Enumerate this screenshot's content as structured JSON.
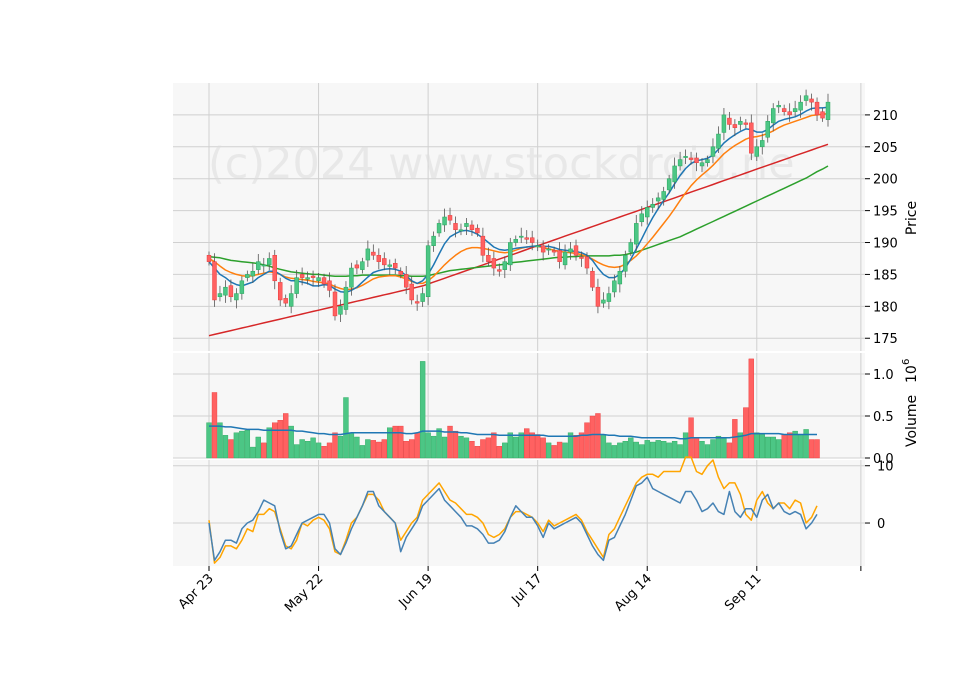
{
  "watermark": "(c)2024 www.stockdroid.ne",
  "colors": {
    "up": "#26a65b",
    "up_fill": "#4cc685",
    "down": "#e83a3a",
    "down_fill": "#ff6161",
    "ma_short": "#1f77b4",
    "ma_mid": "#ff7f0e",
    "ma_long": "#2ca02c",
    "ma_200": "#d62728",
    "osc_fast": "#4682b4",
    "osc_slow": "#ffa500",
    "panel_bg": "#f7f7f7",
    "grid": "#d0d0d0"
  },
  "chart_data": [
    {
      "panel": "price",
      "type": "candlestick",
      "ylabel": "Price",
      "ylim": [
        173,
        215
      ],
      "yticks": [
        175,
        180,
        185,
        190,
        195,
        200,
        205,
        210
      ],
      "x_date_labels": [
        "Apr 23",
        "May 22",
        "Jun 19",
        "Jul 17",
        "Aug 14",
        "Sep 11"
      ],
      "x_date_tick_indices": [
        0,
        20,
        40,
        60,
        80,
        100
      ],
      "close": [
        187,
        181,
        182,
        183,
        181.5,
        182,
        184,
        185,
        185.5,
        187,
        186.5,
        187.5,
        184,
        181,
        180.5,
        182,
        184.5,
        184.5,
        184.5,
        184.5,
        184.5,
        183.5,
        182.5,
        178.5,
        180,
        183,
        186,
        186,
        187,
        189,
        188,
        187,
        186.5,
        186.5,
        186,
        185,
        183,
        181,
        180.5,
        182,
        189.5,
        191,
        193,
        194,
        193.5,
        192,
        192,
        193,
        192,
        191.5,
        188,
        187,
        186,
        185.5,
        187,
        190,
        190.5,
        191,
        190.5,
        190,
        189.5,
        188.5,
        189,
        188.5,
        187,
        188.5,
        189,
        188,
        187.5,
        186,
        183,
        180,
        181,
        182,
        184,
        185.5,
        188,
        190,
        193,
        194.5,
        195.5,
        196,
        197,
        198,
        200,
        202,
        203,
        203.5,
        203,
        202.5,
        202.5,
        203,
        205,
        207,
        210,
        208.5,
        208,
        209,
        208.5,
        204,
        205,
        206,
        209,
        211,
        211.5,
        210.5,
        210,
        211,
        212,
        213,
        212,
        210,
        209.5,
        212
      ],
      "ma_short": [
        187,
        186,
        185,
        184.5,
        183.8,
        183.4,
        183.2,
        183.5,
        183.8,
        184.5,
        185,
        185.5,
        185.5,
        185,
        184.4,
        184,
        184,
        183.8,
        183.6,
        183.2,
        183.2,
        183.4,
        183.3,
        182.7,
        182.3,
        182.2,
        182.5,
        183,
        183.8,
        184.6,
        185.3,
        185.6,
        185.8,
        185.9,
        185.8,
        185.5,
        184.8,
        184,
        183.6,
        184,
        185,
        186.5,
        188.2,
        189.8,
        190.9,
        191.4,
        191.8,
        191.9,
        191.7,
        191.3,
        190.7,
        190,
        189.3,
        188.9,
        188.8,
        188.9,
        189.1,
        189.2,
        189.3,
        189.4,
        189.5,
        189.4,
        189.4,
        189.2,
        188.9,
        188.8,
        188.7,
        188.6,
        188.4,
        188,
        187.2,
        186,
        185,
        184.5,
        184.5,
        185,
        186,
        187.4,
        189,
        190.6,
        192.3,
        193.9,
        195.3,
        196.6,
        197.8,
        199.2,
        200.5,
        201.6,
        202.4,
        202.8,
        203,
        203.2,
        203.7,
        204.6,
        205.6,
        206.3,
        206.9,
        207.4,
        207.8,
        207.7,
        207.3,
        207.3,
        207.7,
        208.4,
        209,
        209.3,
        209.5,
        209.7,
        210.1,
        210.6,
        211,
        211.1,
        211.1,
        211.2
      ],
      "ma_mid": [
        187.5,
        187,
        186.3,
        185.7,
        185.3,
        185,
        184.8,
        184.7,
        184.8,
        185,
        185.2,
        185.4,
        185.3,
        185,
        184.6,
        184.4,
        184.3,
        184.2,
        184.1,
        183.9,
        183.8,
        183.7,
        183.5,
        183.1,
        182.8,
        182.6,
        182.7,
        182.9,
        183.3,
        183.8,
        184.3,
        184.6,
        184.7,
        184.8,
        184.8,
        184.6,
        184.3,
        183.9,
        183.6,
        183.6,
        184,
        184.7,
        185.6,
        186.5,
        187.3,
        188,
        188.6,
        189,
        189.2,
        189.2,
        189.1,
        188.9,
        188.7,
        188.5,
        188.4,
        188.5,
        188.8,
        189.1,
        189.3,
        189.4,
        189.4,
        189.2,
        189,
        188.8,
        188.6,
        188.5,
        188.4,
        188.3,
        188.1,
        187.8,
        187.4,
        186.9,
        186.5,
        186.2,
        186.1,
        186.2,
        186.6,
        187.2,
        187.9,
        188.8,
        189.8,
        190.8,
        191.9,
        193,
        194.1,
        195.3,
        196.6,
        197.8,
        198.9,
        199.8,
        200.6,
        201.3,
        202.1,
        203,
        203.9,
        204.6,
        205.2,
        205.7,
        206.2,
        206.5,
        206.6,
        206.8,
        207.1,
        207.5,
        208,
        208.4,
        208.7,
        209,
        209.3,
        209.6,
        209.9,
        210,
        210.1,
        210.2
      ],
      "ma_long": [
        187.8,
        187.7,
        187.6,
        187.4,
        187.2,
        187.1,
        187,
        186.9,
        186.8,
        186.7,
        186.5,
        186.3,
        186,
        185.8,
        185.6,
        185.4,
        185.3,
        185.2,
        185.1,
        185,
        185,
        184.9,
        184.8,
        184.7,
        184.7,
        184.7,
        184.8,
        184.8,
        184.9,
        184.9,
        184.9,
        184.9,
        184.9,
        184.9,
        184.9,
        184.8,
        184.8,
        184.7,
        184.7,
        184.7,
        184.8,
        185,
        185.2,
        185.4,
        185.6,
        185.7,
        185.8,
        185.9,
        186,
        186.1,
        186.2,
        186.3,
        186.4,
        186.5,
        186.6,
        186.8,
        186.9,
        187,
        187.1,
        187.2,
        187.3,
        187.4,
        187.5,
        187.6,
        187.7,
        187.7,
        187.8,
        187.8,
        187.9,
        187.9,
        187.9,
        187.9,
        187.9,
        187.9,
        188,
        188,
        188.1,
        188.3,
        188.5,
        188.8,
        189.1,
        189.4,
        189.7,
        190,
        190.3,
        190.6,
        190.9,
        191.3,
        191.7,
        192.1,
        192.5,
        192.9,
        193.3,
        193.7,
        194.1,
        194.5,
        194.9,
        195.3,
        195.7,
        196.1,
        196.5,
        196.9,
        197.3,
        197.7,
        198.1,
        198.5,
        198.9,
        199.3,
        199.7,
        200.1,
        200.6,
        201.1,
        201.5,
        202
      ],
      "ma_200": [
        175.4,
        175.6,
        175.8,
        176,
        176.2,
        176.4,
        176.6,
        176.8,
        177,
        177.2,
        177.4,
        177.6,
        177.8,
        178,
        178.2,
        178.4,
        178.6,
        178.8,
        179,
        179.2,
        179.4,
        179.6,
        179.8,
        180,
        180.2,
        180.4,
        180.6,
        180.8,
        181,
        181.2,
        181.4,
        181.6,
        181.8,
        182,
        182.2,
        182.4,
        182.6,
        182.8,
        183,
        183.2,
        183.5,
        183.8,
        184.1,
        184.4,
        184.7,
        185,
        185.3,
        185.6,
        185.9,
        186.2,
        186.5,
        186.8,
        187.1,
        187.4,
        187.7,
        188,
        188.3,
        188.6,
        188.9,
        189.2,
        189.5,
        189.8,
        190.1,
        190.4,
        190.7,
        191,
        191.3,
        191.6,
        191.9,
        192.2,
        192.5,
        192.8,
        193.1,
        193.4,
        193.7,
        194,
        194.3,
        194.6,
        194.9,
        195.2,
        195.5,
        195.8,
        196.1,
        196.4,
        196.7,
        197,
        197.3,
        197.6,
        197.9,
        198.2,
        198.5,
        198.8,
        199.1,
        199.4,
        199.7,
        200,
        200.3,
        200.6,
        200.9,
        201.2,
        201.5,
        201.8,
        202.1,
        202.4,
        202.7,
        203,
        203.3,
        203.6,
        203.9,
        204.2,
        204.5,
        204.8,
        205.1,
        205.4
      ]
    },
    {
      "panel": "volume",
      "type": "bar",
      "ylabel": "Volume",
      "y_multiplier_label": "10",
      "y_multiplier_exponent": "6",
      "ylim": [
        0,
        1.25
      ],
      "yticks": [
        "0.0",
        "0.5",
        "1.0"
      ],
      "values": [
        0.42,
        0.78,
        0.42,
        0.27,
        0.22,
        0.3,
        0.32,
        0.33,
        0.13,
        0.25,
        0.18,
        0.36,
        0.42,
        0.45,
        0.53,
        0.38,
        0.16,
        0.22,
        0.2,
        0.24,
        0.18,
        0.14,
        0.18,
        0.3,
        0.26,
        0.72,
        0.3,
        0.25,
        0.15,
        0.22,
        0.21,
        0.19,
        0.22,
        0.36,
        0.38,
        0.38,
        0.2,
        0.22,
        0.3,
        1.15,
        0.3,
        0.26,
        0.35,
        0.25,
        0.38,
        0.32,
        0.26,
        0.24,
        0.2,
        0.14,
        0.22,
        0.24,
        0.3,
        0.14,
        0.18,
        0.3,
        0.25,
        0.3,
        0.35,
        0.3,
        0.28,
        0.24,
        0.18,
        0.15,
        0.19,
        0.18,
        0.3,
        0.27,
        0.3,
        0.42,
        0.5,
        0.53,
        0.28,
        0.18,
        0.15,
        0.18,
        0.2,
        0.24,
        0.19,
        0.16,
        0.21,
        0.19,
        0.21,
        0.2,
        0.18,
        0.2,
        0.16,
        0.3,
        0.48,
        0.24,
        0.2,
        0.16,
        0.22,
        0.26,
        0.24,
        0.18,
        0.46,
        0.3,
        0.6,
        1.18,
        0.3,
        0.28,
        0.25,
        0.25,
        0.22,
        0.28,
        0.3,
        0.32,
        0.28,
        0.34,
        0.22,
        0.22
      ],
      "ma_line": [
        0.38,
        0.38,
        0.38,
        0.37,
        0.37,
        0.36,
        0.35,
        0.34,
        0.34,
        0.34,
        0.33,
        0.33,
        0.33,
        0.33,
        0.33,
        0.33,
        0.32,
        0.32,
        0.31,
        0.3,
        0.29,
        0.29,
        0.28,
        0.28,
        0.28,
        0.29,
        0.3,
        0.3,
        0.3,
        0.3,
        0.3,
        0.3,
        0.3,
        0.3,
        0.3,
        0.3,
        0.29,
        0.29,
        0.3,
        0.32,
        0.32,
        0.32,
        0.32,
        0.31,
        0.31,
        0.31,
        0.3,
        0.3,
        0.29,
        0.28,
        0.28,
        0.28,
        0.28,
        0.27,
        0.27,
        0.27,
        0.27,
        0.27,
        0.27,
        0.27,
        0.27,
        0.27,
        0.26,
        0.26,
        0.26,
        0.26,
        0.26,
        0.26,
        0.27,
        0.27,
        0.28,
        0.28,
        0.28,
        0.27,
        0.27,
        0.26,
        0.26,
        0.26,
        0.25,
        0.24,
        0.24,
        0.24,
        0.24,
        0.24,
        0.24,
        0.24,
        0.23,
        0.23,
        0.24,
        0.24,
        0.24,
        0.24,
        0.24,
        0.24,
        0.24,
        0.24,
        0.25,
        0.26,
        0.27,
        0.29,
        0.29,
        0.29,
        0.29,
        0.29,
        0.29,
        0.28,
        0.28,
        0.28,
        0.28,
        0.28,
        0.28,
        0.28
      ]
    },
    {
      "panel": "oscillator",
      "type": "line",
      "ylim": [
        -7.5,
        11
      ],
      "yticks": [
        0,
        10
      ],
      "series": [
        {
          "values": [
            0.5,
            -7,
            -6,
            -4,
            -4,
            -4.5,
            -3,
            -1,
            -1.5,
            1.5,
            1.5,
            2.5,
            2,
            -1,
            -4,
            -4.5,
            -3,
            0,
            -0.5,
            0.5,
            1,
            0.5,
            -1,
            -5,
            -5.5,
            -3,
            0,
            1,
            3,
            5,
            5,
            4,
            2,
            1,
            0,
            -3,
            -1.5,
            0,
            1,
            4,
            5,
            6,
            7,
            5.5,
            4,
            3.5,
            2.5,
            1.5,
            1.5,
            1,
            0,
            -2,
            -2.5,
            -2,
            -1,
            1,
            2,
            2,
            1.5,
            1,
            0,
            -1.5,
            0.5,
            -0.5,
            0,
            0.5,
            1,
            1.5,
            0.5,
            -1.5,
            -3,
            -4.5,
            -6,
            -2,
            -1,
            1,
            3,
            5,
            7,
            8,
            8.5,
            8.5,
            8,
            9,
            9,
            9,
            9,
            11.5,
            11.5,
            9,
            8.5,
            10,
            11,
            8,
            6,
            7,
            7,
            5,
            1.5,
            0.5,
            4,
            5.5,
            3.5,
            2.5,
            3.5,
            3.5,
            2.5,
            4,
            3.5,
            0,
            1,
            3
          ]
        },
        {
          "values": [
            0,
            -6.5,
            -5,
            -3,
            -3,
            -3.5,
            -1,
            0,
            0.5,
            2,
            4,
            3.5,
            3,
            -1.5,
            -4.5,
            -4,
            -2,
            0,
            0.5,
            1,
            1.5,
            1.5,
            0,
            -4.5,
            -5.5,
            -3.5,
            -1,
            1,
            3,
            5.5,
            5.5,
            3,
            2,
            1,
            0,
            -5,
            -2.5,
            -1,
            0.5,
            3,
            4,
            5,
            6,
            4,
            3,
            2,
            1,
            -0.5,
            -0.5,
            -1,
            -2,
            -3.5,
            -3.5,
            -3,
            -1.5,
            1,
            3,
            2,
            1,
            1,
            -0.5,
            -2.5,
            0,
            -1,
            -0.5,
            0,
            0.5,
            1,
            0,
            -2,
            -4,
            -5.5,
            -6.5,
            -3,
            -2.5,
            -0.5,
            1.5,
            4,
            6.5,
            7,
            8,
            6,
            5.5,
            5,
            4.5,
            4,
            3.5,
            5.5,
            5.5,
            4,
            2,
            2.5,
            3.5,
            2,
            1.5,
            5.5,
            2,
            1,
            2.5,
            2.5,
            1,
            4,
            5,
            2.5,
            3.5,
            2,
            1.5,
            2,
            1.5,
            -1,
            0,
            1.5
          ]
        }
      ]
    }
  ]
}
